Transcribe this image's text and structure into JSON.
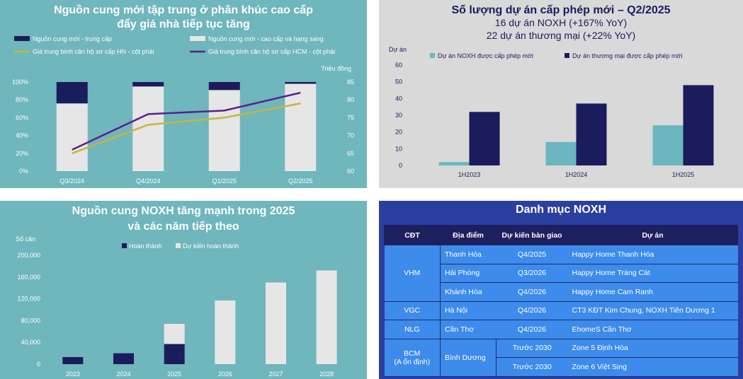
{
  "chart_data": [
    {
      "type": "bar",
      "title": "Nguồn cung mới tập trung ở phân khúc cao cấp",
      "subtitle": "đẩy giá nhà tiếp tục tăng",
      "categories": [
        "Q3/2024",
        "Q4/2024",
        "Q1/2025",
        "Q2/2025"
      ],
      "series": [
        {
          "name": "Nguồn cung mới - trung cấp",
          "values": [
            24,
            5,
            9,
            2
          ],
          "color": "#1b1c5c",
          "kind": "bar"
        },
        {
          "name": "Nguồn cung mới - cao cấp và hạng sang",
          "values": [
            76,
            95,
            91,
            98
          ],
          "color": "#e6e6e6",
          "kind": "bar"
        },
        {
          "name": "Giá trung bình căn hộ sơ cấp HN - cột phải",
          "values": [
            65,
            73,
            75,
            79
          ],
          "color": "#c7b53f",
          "kind": "line"
        },
        {
          "name": "Giá trung bình căn hộ sơ cấp HCM - cột phải",
          "values": [
            66,
            76,
            77,
            82
          ],
          "color": "#5b1f8c",
          "kind": "line"
        }
      ],
      "y_left": {
        "ticks": [
          "0%",
          "20%",
          "40%",
          "60%",
          "80%",
          "100%"
        ],
        "range": [
          0,
          100
        ]
      },
      "y_right": {
        "label": "Triệu đồng",
        "ticks": [
          "60",
          "65",
          "70",
          "75",
          "80",
          "85"
        ],
        "range": [
          60,
          85
        ]
      },
      "grid": false,
      "legend": "top"
    },
    {
      "type": "bar",
      "title": "Số lượng dự án cấp phép mới – Q2/2025",
      "subtitle_1": "16 dự án NOXH (+167% YoY)",
      "subtitle_2": "22 dự án thương mại (+22% YoY)",
      "ylabel": "Dự án",
      "categories": [
        "1H2023",
        "1H2024",
        "1H2025"
      ],
      "series": [
        {
          "name": "Dự án NOXH được cấp phép mới",
          "values": [
            2,
            14,
            24
          ],
          "color": "#6cb6bf"
        },
        {
          "name": "Dự án thương mại được cấp phép mới",
          "values": [
            32,
            37,
            48
          ],
          "color": "#1b1c5c"
        }
      ],
      "ylim": [
        0,
        60
      ],
      "yticks": [
        "0",
        "10",
        "20",
        "30",
        "40",
        "50",
        "60"
      ],
      "grid": false,
      "legend": "top"
    },
    {
      "type": "bar",
      "title": "Nguồn cung NOXH tăng mạnh trong 2025",
      "subtitle": "và các năm tiếp theo",
      "ylabel": "Số căn",
      "categories": [
        "2023",
        "2024",
        "2025",
        "2026",
        "2027",
        "2028"
      ],
      "series": [
        {
          "name": "Hoàn thành",
          "values": [
            13000,
            20000,
            37000,
            0,
            0,
            0
          ],
          "color": "#1b1c5c"
        },
        {
          "name": "Dự kiến hoàn thành",
          "values": [
            0,
            0,
            37000,
            117000,
            150000,
            172000
          ],
          "color": "#e6e6e6"
        }
      ],
      "ylim": [
        0,
        200000
      ],
      "yticks": [
        "0",
        "40,000",
        "80,000",
        "120,000",
        "160,000",
        "200,000"
      ],
      "grid": false,
      "legend": "top"
    },
    {
      "type": "table",
      "title": "Danh mục NOXH",
      "columns": [
        "CĐT",
        "Địa điểm",
        "Dự kiến bàn giao",
        "Dự án"
      ],
      "groups": [
        {
          "cdt": "VHM",
          "rows": [
            {
              "location": "Thanh Hóa",
              "handover": "Q4/2025",
              "project": "Happy Home Thanh Hóa"
            },
            {
              "location": "Hải Phòng",
              "handover": "Q3/2026",
              "project": "Happy Home Tràng Cát"
            },
            {
              "location": "Khánh Hòa",
              "handover": "Q4/2026",
              "project": "Happy Home Cam Ranh"
            }
          ]
        },
        {
          "cdt": "VGC",
          "rows": [
            {
              "location": "Hà Nội",
              "handover": "Q4/2026",
              "project": "CT3 KĐT Kim Chung, NOXH Tiên Dương 1"
            }
          ]
        },
        {
          "cdt": "NLG",
          "rows": [
            {
              "location": "Cần Thơ",
              "handover": "Q4/2026",
              "project": "EhomeS Cần Thơ"
            }
          ]
        },
        {
          "cdt": "BCM",
          "cdt_sub": "(A ổn định)",
          "location": "Bình Dương",
          "rows": [
            {
              "handover": "Trước 2030",
              "project": "Zone 5 Định Hòa"
            },
            {
              "handover": "Trước 2030",
              "project": "Zone 6 Việt Sing"
            }
          ]
        }
      ]
    }
  ]
}
